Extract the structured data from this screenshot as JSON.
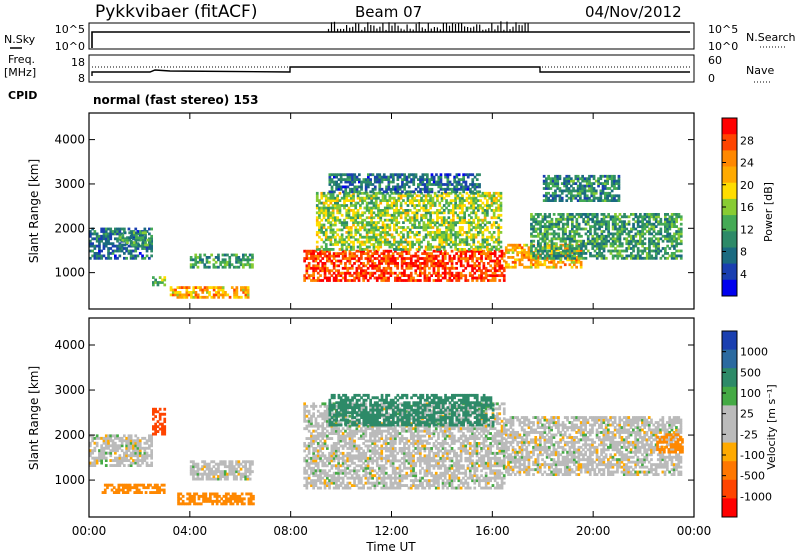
{
  "header": {
    "site": "Pykkvibaer (fitACF)",
    "beam": "Beam 07",
    "date": "04/Nov/2012"
  },
  "status_panels": {
    "nsky": {
      "label": "N.Sky",
      "right_label": "N.Search",
      "left_ticks": [
        "10^5",
        "10^0"
      ],
      "right_ticks": [
        "10^5",
        "10^0"
      ]
    },
    "freq": {
      "label_line1": "Freq.",
      "label_line2": "[MHz]",
      "right_label": "Nave",
      "left_ticks": [
        "18",
        "8"
      ],
      "right_ticks": [
        "60",
        "0"
      ]
    },
    "cpid": {
      "label": "CPID",
      "text": "normal (fast stereo) 153"
    }
  },
  "chart_data": [
    {
      "type": "heatmap",
      "panel": "power",
      "ylabel": "Slant Range [km]",
      "xlabel": "",
      "x_range": [
        "00:00",
        "24:00"
      ],
      "ylim": [
        180,
        4600
      ],
      "y_ticks": [
        1000,
        2000,
        3000,
        4000
      ],
      "colorbar": {
        "label": "Power [dB]",
        "ticks": [
          "28",
          "24",
          "20",
          "16",
          "12",
          "8",
          "4"
        ],
        "colors": [
          "#ff0000",
          "#ff4400",
          "#ff8800",
          "#ffaa00",
          "#ffdd00",
          "#88cc33",
          "#44aa55",
          "#2d8a68",
          "#1a6a80",
          "#1a3fb0",
          "#0000ee"
        ]
      },
      "regions": [
        {
          "t0": 0.0,
          "t1": 2.5,
          "r0": 1300,
          "r1": 2000,
          "level": 8
        },
        {
          "t0": 1.2,
          "t1": 2.4,
          "r0": 1600,
          "r1": 1900,
          "level": 12
        },
        {
          "t0": 2.5,
          "t1": 3.0,
          "r0": 700,
          "r1": 900,
          "level": 14
        },
        {
          "t0": 3.2,
          "t1": 6.3,
          "r0": 420,
          "r1": 650,
          "level": 22
        },
        {
          "t0": 4.0,
          "t1": 6.5,
          "r0": 1100,
          "r1": 1400,
          "level": 12
        },
        {
          "t0": 8.5,
          "t1": 16.5,
          "r0": 800,
          "r1": 1500,
          "level": 28
        },
        {
          "t0": 9.0,
          "t1": 16.3,
          "r0": 1500,
          "r1": 2800,
          "level": 16
        },
        {
          "t0": 9.5,
          "t1": 15.5,
          "r0": 2800,
          "r1": 3200,
          "level": 8
        },
        {
          "t0": 16.5,
          "t1": 19.5,
          "r0": 1100,
          "r1": 1600,
          "level": 22
        },
        {
          "t0": 17.5,
          "t1": 23.5,
          "r0": 1300,
          "r1": 2300,
          "level": 12
        },
        {
          "t0": 18.0,
          "t1": 21.0,
          "r0": 2600,
          "r1": 3200,
          "level": 10
        }
      ]
    },
    {
      "type": "heatmap",
      "panel": "velocity",
      "ylabel": "Slant Range [km]",
      "xlabel": "Time UT",
      "x_range": [
        "00:00",
        "24:00"
      ],
      "ylim": [
        180,
        4600
      ],
      "y_ticks": [
        1000,
        2000,
        3000,
        4000
      ],
      "x_ticks": [
        "00:00",
        "04:00",
        "08:00",
        "12:00",
        "16:00",
        "20:00",
        "00:00"
      ],
      "colorbar": {
        "label": "Velocity [m s⁻¹]",
        "ticks": [
          "1000",
          "500",
          "100",
          "25",
          "-25",
          "-100",
          "-500",
          "-1000"
        ],
        "colors": [
          "#1a3fb0",
          "#2b6aa0",
          "#2d8a68",
          "#44aa44",
          "#bbbbbb",
          "#bbbbbb",
          "#ffaa00",
          "#ff7700",
          "#ff4400",
          "#ff0000"
        ]
      },
      "regions": [
        {
          "t0": 0.0,
          "t1": 2.5,
          "r0": 1300,
          "r1": 2000,
          "level": 0
        },
        {
          "t0": 0.5,
          "t1": 3.0,
          "r0": 700,
          "r1": 900,
          "level": -400
        },
        {
          "t0": 2.5,
          "t1": 3.0,
          "r0": 2000,
          "r1": 2600,
          "level": -600
        },
        {
          "t0": 3.5,
          "t1": 6.5,
          "r0": 450,
          "r1": 700,
          "level": -200
        },
        {
          "t0": 4.0,
          "t1": 6.5,
          "r0": 1000,
          "r1": 1400,
          "level": 0
        },
        {
          "t0": 8.5,
          "t1": 16.5,
          "r0": 800,
          "r1": 2700,
          "level": 0
        },
        {
          "t0": 9.5,
          "t1": 16.0,
          "r0": 2200,
          "r1": 2900,
          "level": 150
        },
        {
          "t0": 16.5,
          "t1": 23.5,
          "r0": 1100,
          "r1": 2400,
          "level": 0
        },
        {
          "t0": 22.5,
          "t1": 23.5,
          "r0": 1600,
          "r1": 2000,
          "level": -300
        }
      ]
    }
  ]
}
